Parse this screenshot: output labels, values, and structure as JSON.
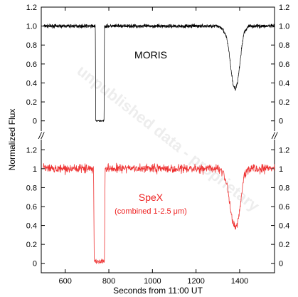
{
  "chart_data": [
    {
      "type": "line",
      "panel": "top",
      "label": "MORIS",
      "ylim": [
        -0.1,
        1.2
      ],
      "yticks": [
        "0",
        "0.2",
        "0.4",
        "0.6",
        "0.8",
        "1.0",
        "1.2"
      ],
      "color": "#000000",
      "series": [
        {
          "name": "MORIS",
          "x": [
            500,
            600,
            700,
            738,
            740,
            760,
            778,
            780,
            800,
            900,
            1000,
            1100,
            1200,
            1300,
            1320,
            1340,
            1350,
            1360,
            1370,
            1380,
            1390,
            1400,
            1410,
            1420,
            1440,
            1500,
            1560
          ],
          "y": [
            1.0,
            1.0,
            1.0,
            1.0,
            0.0,
            0.0,
            0.0,
            1.0,
            1.0,
            1.0,
            1.0,
            1.0,
            1.0,
            1.0,
            0.98,
            0.88,
            0.75,
            0.55,
            0.38,
            0.33,
            0.4,
            0.58,
            0.78,
            0.93,
            1.0,
            1.0,
            1.0
          ]
        }
      ]
    },
    {
      "type": "line",
      "panel": "bottom",
      "label": "SpeX",
      "sublabel": "(combined 1-2.5 μm)",
      "ylim": [
        -0.1,
        1.3
      ],
      "yticks": [
        "0",
        "0.2",
        "0.4",
        "0.6",
        "0.8",
        "1",
        "1.2"
      ],
      "color": "#ee3333",
      "series": [
        {
          "name": "SpeX",
          "x": [
            500,
            600,
            700,
            730,
            733,
            760,
            780,
            783,
            800,
            900,
            1000,
            1100,
            1200,
            1300,
            1320,
            1340,
            1350,
            1360,
            1370,
            1380,
            1390,
            1400,
            1410,
            1420,
            1440,
            1500,
            1560
          ],
          "y": [
            1.0,
            1.0,
            1.0,
            1.0,
            0.02,
            0.02,
            0.02,
            1.0,
            1.0,
            1.0,
            1.0,
            1.0,
            1.0,
            1.0,
            0.98,
            0.85,
            0.72,
            0.55,
            0.42,
            0.38,
            0.42,
            0.55,
            0.75,
            0.92,
            1.0,
            1.0,
            1.0
          ]
        }
      ]
    }
  ],
  "axes": {
    "xlabel": "Seconds from 11:00 UT",
    "ylabel": "Normalized Flux",
    "xlim": [
      490,
      1560
    ],
    "xticks": [
      "600",
      "800",
      "1000",
      "1200",
      "1400"
    ],
    "axis_break": "//"
  },
  "watermark": "unpublished data - proprietary"
}
